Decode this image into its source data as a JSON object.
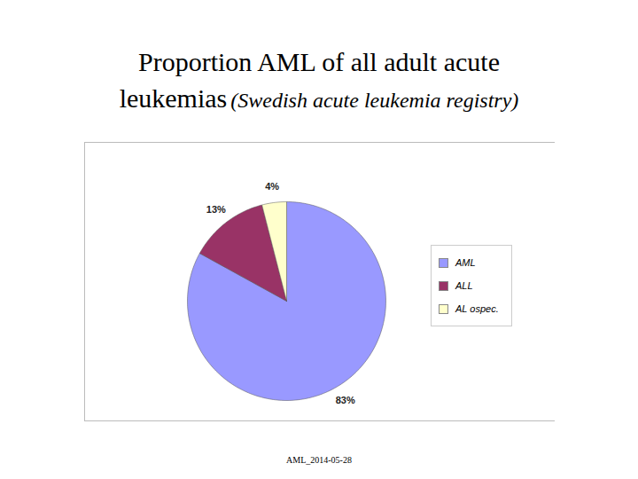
{
  "chart_data": {
    "type": "pie",
    "title": "Proportion AML of all adult acute leukemias",
    "subtitle": "(Swedish acute leukemia registry)",
    "caption": "AML_2014-05-28",
    "categories": [
      "AML",
      "ALL",
      "AL ospec."
    ],
    "values": [
      83,
      13,
      4
    ],
    "value_labels": [
      "83%",
      "13%",
      "4%"
    ],
    "colors": [
      "#9999ff",
      "#993366",
      "#ffffcc"
    ],
    "data_labels": true,
    "legend": "right"
  }
}
